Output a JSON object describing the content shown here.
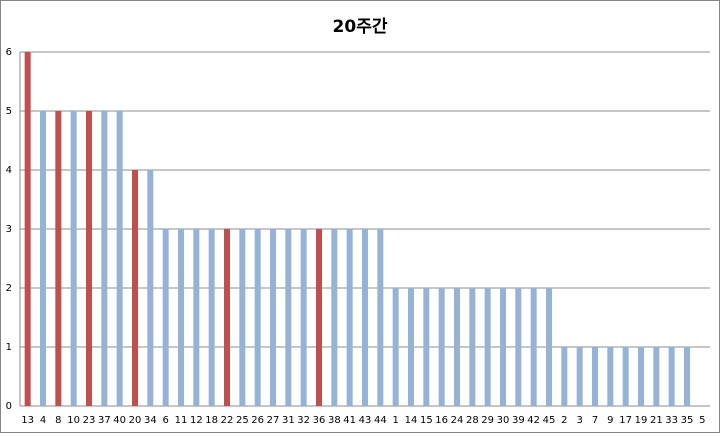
{
  "chart_data": {
    "type": "bar",
    "title": "20주간",
    "categories": [
      "13",
      "4",
      "8",
      "10",
      "23",
      "37",
      "40",
      "20",
      "34",
      "6",
      "11",
      "12",
      "18",
      "22",
      "25",
      "26",
      "27",
      "31",
      "32",
      "36",
      "38",
      "41",
      "43",
      "44",
      "1",
      "14",
      "15",
      "16",
      "24",
      "28",
      "29",
      "30",
      "39",
      "42",
      "45",
      "2",
      "3",
      "7",
      "9",
      "17",
      "19",
      "21",
      "33",
      "35",
      "5"
    ],
    "values": [
      6,
      5,
      5,
      5,
      5,
      5,
      5,
      4,
      4,
      3,
      3,
      3,
      3,
      3,
      3,
      3,
      3,
      3,
      3,
      3,
      3,
      3,
      3,
      3,
      2,
      2,
      2,
      2,
      2,
      2,
      2,
      2,
      2,
      2,
      2,
      1,
      1,
      1,
      1,
      1,
      1,
      1,
      1,
      1,
      0
    ],
    "colors": [
      "#c0504d",
      "#95b3d7",
      "#c0504d",
      "#95b3d7",
      "#c0504d",
      "#95b3d7",
      "#95b3d7",
      "#c0504d",
      "#95b3d7",
      "#95b3d7",
      "#95b3d7",
      "#95b3d7",
      "#95b3d7",
      "#c0504d",
      "#95b3d7",
      "#95b3d7",
      "#95b3d7",
      "#95b3d7",
      "#95b3d7",
      "#c0504d",
      "#95b3d7",
      "#95b3d7",
      "#95b3d7",
      "#95b3d7",
      "#95b3d7",
      "#95b3d7",
      "#95b3d7",
      "#95b3d7",
      "#95b3d7",
      "#95b3d7",
      "#95b3d7",
      "#95b3d7",
      "#95b3d7",
      "#95b3d7",
      "#95b3d7",
      "#95b3d7",
      "#95b3d7",
      "#95b3d7",
      "#95b3d7",
      "#95b3d7",
      "#95b3d7",
      "#95b3d7",
      "#95b3d7",
      "#95b3d7",
      "#95b3d7"
    ],
    "ylim": [
      0,
      6
    ],
    "yticks": [
      0,
      1,
      2,
      3,
      4,
      5,
      6
    ],
    "grid": true
  }
}
